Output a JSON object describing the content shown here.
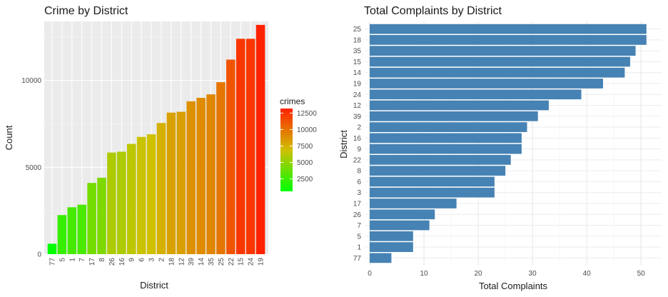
{
  "chart_data": [
    {
      "type": "bar",
      "title": "Crime by District",
      "xlabel": "District",
      "ylabel": "Count",
      "ylim": [
        0,
        13400
      ],
      "yticks": [
        0,
        5000,
        10000
      ],
      "grid": true,
      "panel_background": "#ebebeb",
      "categories": [
        "77",
        "5",
        "1",
        "7",
        "17",
        "8",
        "26",
        "16",
        "9",
        "6",
        "3",
        "2",
        "18",
        "12",
        "39",
        "14",
        "35",
        "25",
        "22",
        "15",
        "24",
        "19"
      ],
      "values": [
        600,
        2250,
        2700,
        2850,
        4100,
        4400,
        5850,
        5900,
        6350,
        6750,
        6900,
        7550,
        8150,
        8200,
        8800,
        9000,
        9200,
        9900,
        11200,
        12400,
        12400,
        13200
      ],
      "fill_gradient": {
        "low": "#00ff00",
        "high": "#ff2200"
      },
      "legend": {
        "title": "crimes",
        "position": "right",
        "ticks": [
          "12500",
          "10000",
          "7500",
          "5000",
          "2500"
        ],
        "tick_values": [
          12500,
          10000,
          7500,
          5000,
          2500
        ],
        "range": [
          600,
          13200
        ]
      }
    },
    {
      "type": "bar",
      "orientation": "horizontal",
      "title": "Total Complaints by District",
      "xlabel": "Total Complaints",
      "ylabel": "District",
      "xlim": [
        0,
        53
      ],
      "xticks": [
        0,
        10,
        20,
        30,
        40,
        50
      ],
      "grid": true,
      "bar_color": "#4682b4",
      "categories": [
        "25",
        "18",
        "35",
        "15",
        "14",
        "19",
        "24",
        "12",
        "39",
        "2",
        "16",
        "9",
        "22",
        "8",
        "6",
        "3",
        "17",
        "26",
        "7",
        "5",
        "1",
        "77"
      ],
      "values": [
        51,
        51,
        49,
        48,
        47,
        43,
        39,
        33,
        31,
        29,
        28,
        28,
        26,
        25,
        23,
        23,
        16,
        12,
        11,
        8,
        8,
        4
      ]
    }
  ]
}
